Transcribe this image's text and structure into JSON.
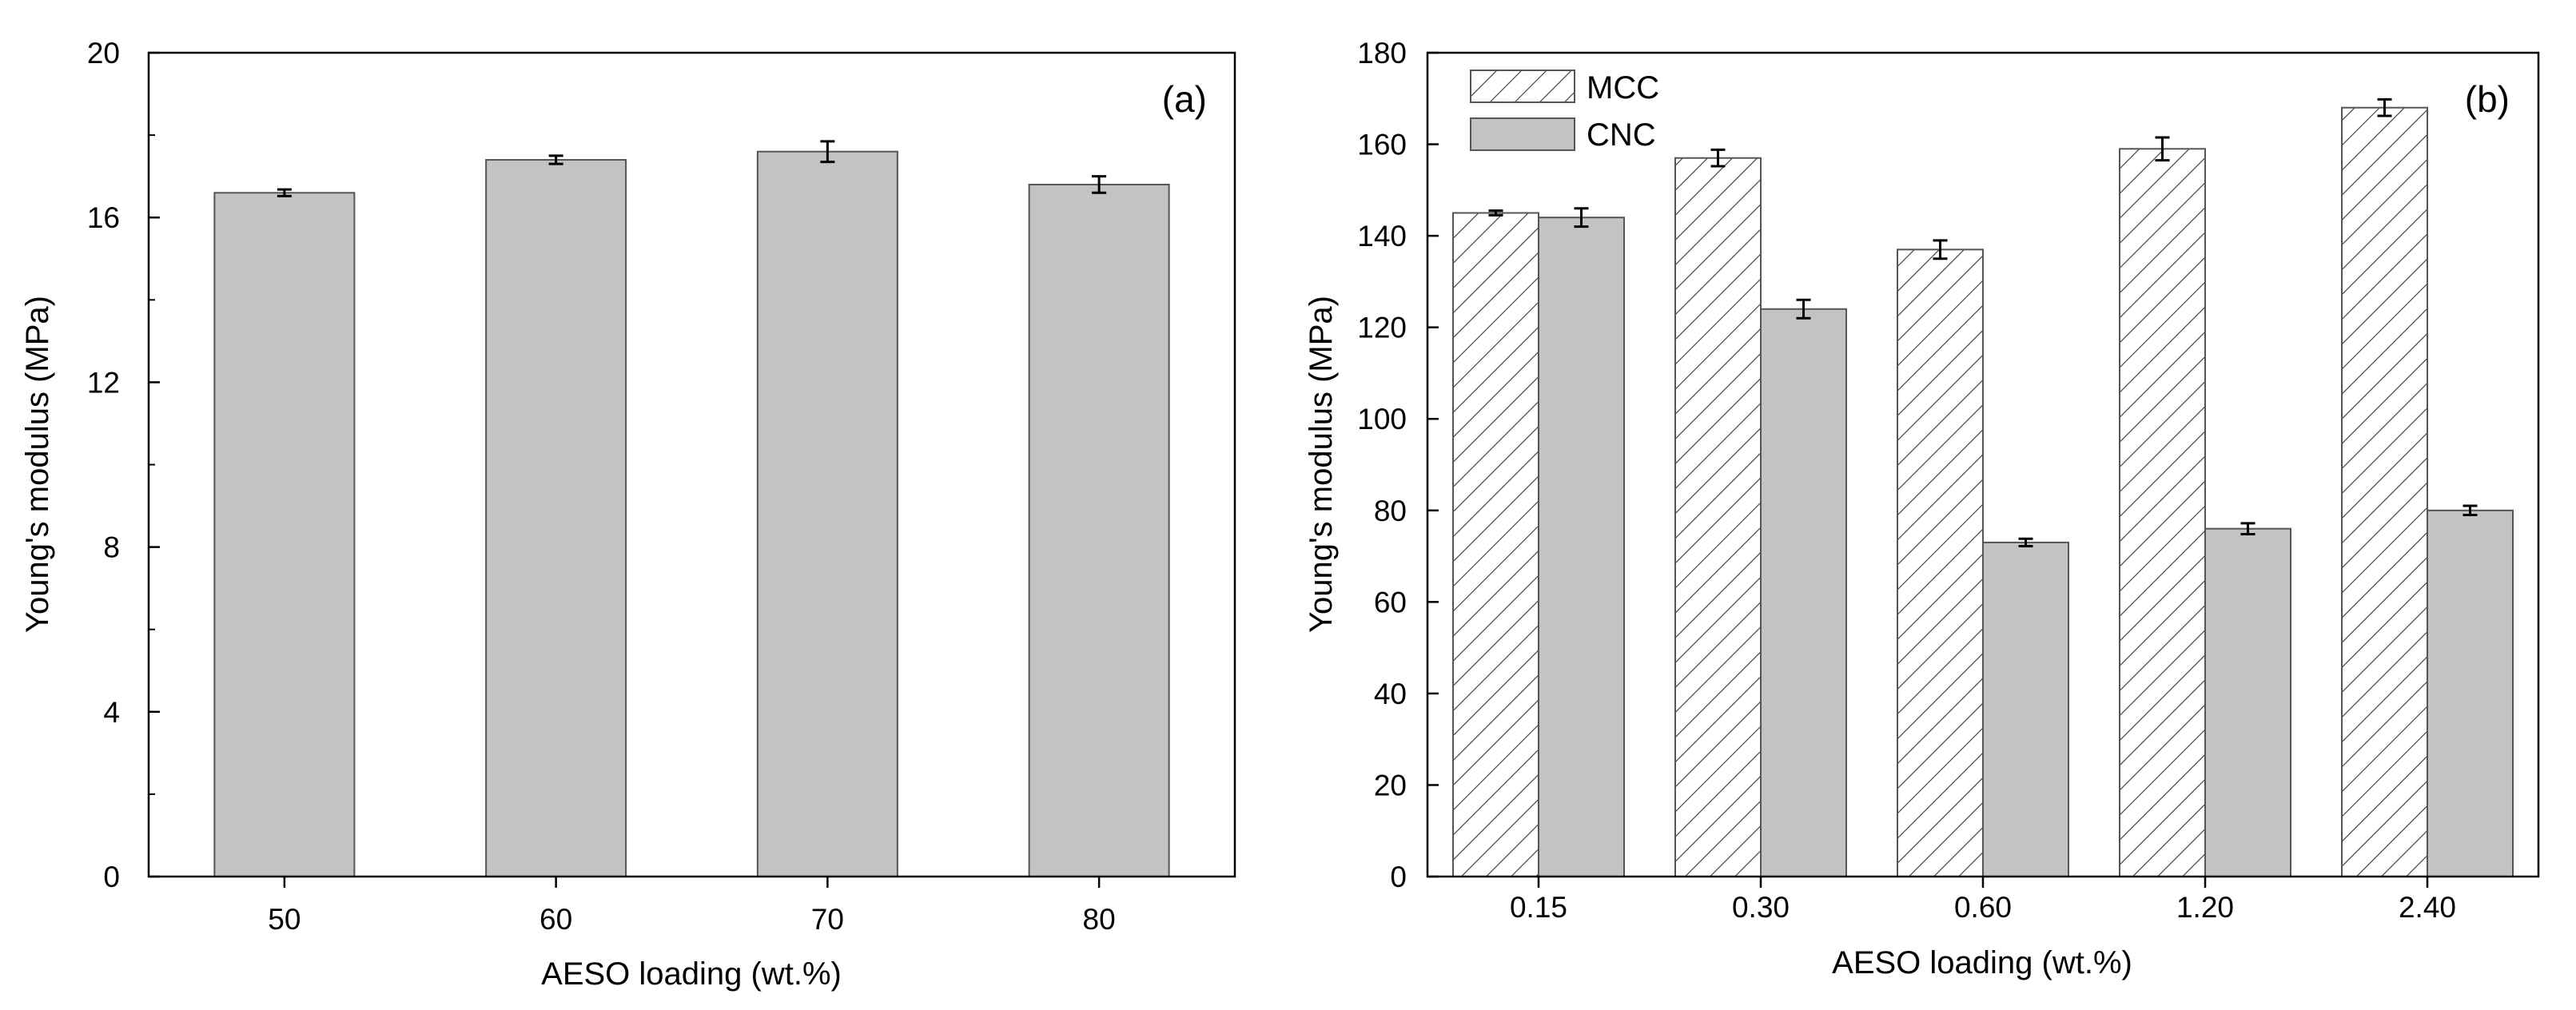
{
  "colors": {
    "bar_fill": "#c3c3c3",
    "bar_stroke": "#555555",
    "axis": "#000000",
    "hatch": "#333333",
    "background": "#ffffff"
  },
  "chart_data": [
    {
      "type": "bar",
      "panel_label": "(a)",
      "title": "",
      "xlabel": "AESO loading (wt.%)",
      "ylabel": "Young's modulus (MPa)",
      "categories": [
        "50",
        "60",
        "70",
        "80"
      ],
      "ylim": [
        0,
        20
      ],
      "yticks": [
        0,
        4,
        8,
        12,
        16,
        20
      ],
      "yticks_minor": [
        2,
        6,
        10,
        14,
        18
      ],
      "series": [
        {
          "name": "",
          "pattern": "solid",
          "values": [
            16.6,
            17.4,
            17.6,
            16.8
          ],
          "errors": [
            0.08,
            0.1,
            0.25,
            0.2
          ]
        }
      ],
      "grid": false
    },
    {
      "type": "bar",
      "panel_label": "(b)",
      "title": "",
      "xlabel": "AESO loading (wt.%)",
      "ylabel": "Young's modulus (MPa)",
      "categories": [
        "0.15",
        "0.30",
        "0.60",
        "1.20",
        "2.40"
      ],
      "ylim": [
        0,
        180
      ],
      "yticks": [
        0,
        20,
        40,
        60,
        80,
        100,
        120,
        140,
        160,
        180
      ],
      "legend_position": "top-left",
      "series": [
        {
          "name": "MCC",
          "pattern": "hatched",
          "values": [
            145,
            157,
            137,
            159,
            168
          ],
          "errors": [
            0.5,
            1.8,
            2.0,
            2.5,
            1.8
          ]
        },
        {
          "name": "CNC",
          "pattern": "solid",
          "values": [
            144,
            124,
            73,
            76,
            80
          ],
          "errors": [
            2.0,
            2.0,
            0.8,
            1.2,
            1.0
          ]
        }
      ],
      "grid": false
    }
  ]
}
